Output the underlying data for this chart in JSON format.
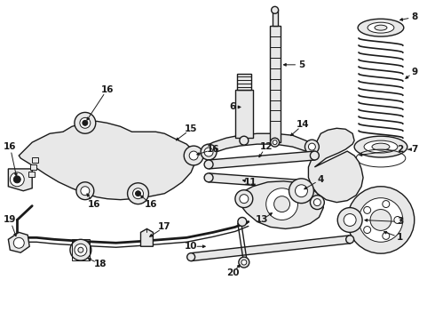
{
  "bg_color": "#ffffff",
  "line_color": "#1a1a1a",
  "fig_width": 4.9,
  "fig_height": 3.6,
  "dpi": 100,
  "gray_fill": "#c8c8c8",
  "light_fill": "#e8e8e8"
}
